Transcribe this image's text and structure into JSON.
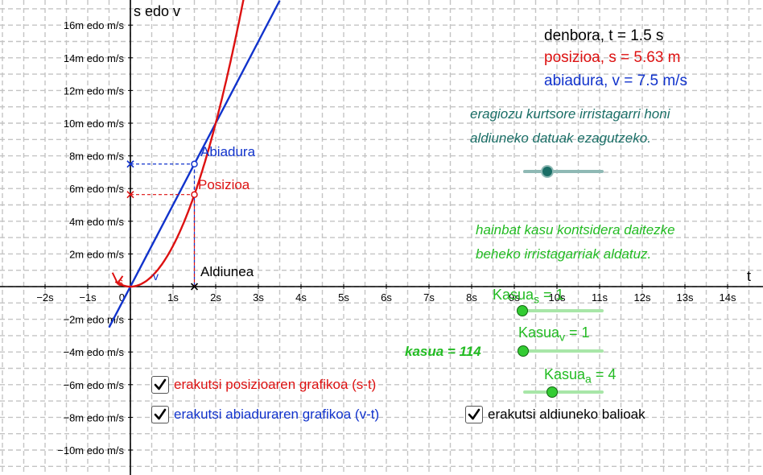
{
  "axes": {
    "y_label": "s edo v",
    "x_label": "t",
    "x_ticks": [
      "−2s",
      "−1s",
      "0",
      "1s",
      "2s",
      "3s",
      "4s",
      "5s",
      "6s",
      "7s",
      "8s",
      "9s",
      "10s",
      "11s",
      "12s",
      "13s",
      "14s"
    ],
    "y_ticks": [
      "16m edo m/s",
      "14m edo m/s",
      "12m edo m/s",
      "10m edo m/s",
      "8m edo m/s",
      "6m edo m/s",
      "4m edo m/s",
      "2m edo m/s",
      "−2m edo m/s",
      "−4m edo m/s",
      "−6m edo m/s",
      "−8m edo m/s",
      "−10m edo m/s"
    ]
  },
  "readouts": {
    "time": "denbora, t = 1.5 s",
    "position": "posizioa, s = 5.63 m",
    "velocity": "abiadura, v = 7.5 m/s"
  },
  "hints": {
    "cursor_line1": "eragiozu kurtsore irristagarri honi",
    "cursor_line2": "aldiuneko datuak ezagutzeko.",
    "cases_line1": "hainbat kasu kontsidera daitezke",
    "cases_line2": "beheko irristagarriak aldatuz."
  },
  "labels": {
    "velocity_point": "Abiadura",
    "position_point": "Posizioa",
    "instant": "Aldiunea",
    "s_curve": "s",
    "v_curve": "v",
    "kasua": "kasua = 114"
  },
  "sliders": {
    "time": {
      "value": 1.5
    },
    "kasua_s": {
      "label_main": "Kasua",
      "label_sub": "s",
      "label_value": " = 1",
      "value": 1
    },
    "kasua_v": {
      "label_main": "Kasua",
      "label_sub": "v",
      "label_value": " = 1",
      "value": 1
    },
    "kasua_a": {
      "label_main": "Kasua",
      "label_sub": "a",
      "label_value": " = 4",
      "value": 4
    }
  },
  "checkboxes": {
    "position_graph": {
      "label": "erakutsi posizioaren grafikoa (s-t)",
      "checked": true
    },
    "velocity_graph": {
      "label": "erakutsi abiaduraren grafikoa (v-t)",
      "checked": true
    },
    "instant_values": {
      "label": "erakutsi aldiuneko balioak",
      "checked": true
    }
  },
  "colors": {
    "position": "#dd1111",
    "velocity": "#1133cc",
    "hint_teal": "#1a6e66",
    "hint_green": "#22bb22",
    "slider_knob_green": "#33cc33",
    "slider_knob_teal": "#1a6e66"
  },
  "chart_data": {
    "type": "line",
    "x_range": [
      -3,
      15
    ],
    "y_range": [
      -11,
      17.5
    ],
    "grid": true,
    "series": [
      {
        "name": "s",
        "function": "s = 2.5 t^2",
        "color": "#dd1111"
      },
      {
        "name": "v",
        "function": "v = 5 t",
        "color": "#1133cc"
      }
    ],
    "instant": {
      "t": 1.5,
      "s": 5.63,
      "v": 7.5
    }
  }
}
